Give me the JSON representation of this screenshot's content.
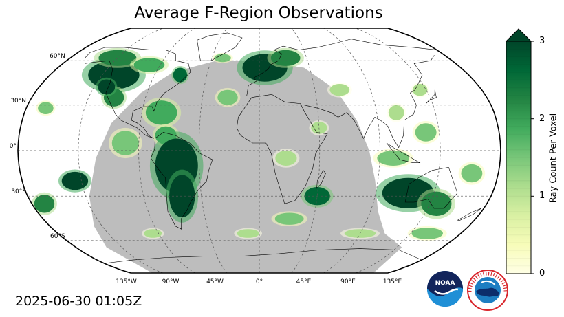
{
  "title": "Average F-Region Observations",
  "timestamp": "2025-06-30 01:05Z",
  "map": {
    "projection": "Robinson",
    "graticule_lon_step": 45,
    "graticule_lat_step": 30,
    "lon_labels": [
      "135°W",
      "90°W",
      "45°W",
      "0°",
      "45°E",
      "90°E",
      "135°E"
    ],
    "lat_labels": [
      "60°N",
      "30°N",
      "0°",
      "30°S",
      "60°S"
    ],
    "night_shading_color": "#bdbdbd",
    "coastline_color": "#000000",
    "data_field": "Ray count per voxel"
  },
  "colorbar": {
    "label": "Ray Count Per Voxel",
    "ticks": [
      "0",
      "1",
      "2",
      "3"
    ],
    "min": 0,
    "max": 3,
    "extend": "max",
    "colormap": "YlGn",
    "colors": [
      "#ffffe5",
      "#f7fcb9",
      "#d9f0a3",
      "#addd8e",
      "#78c679",
      "#41ab5d",
      "#238443",
      "#006837",
      "#004529"
    ]
  },
  "logos": {
    "noaa": "NOAA",
    "nws": "NATIONAL WEATHER SERVICE"
  }
}
